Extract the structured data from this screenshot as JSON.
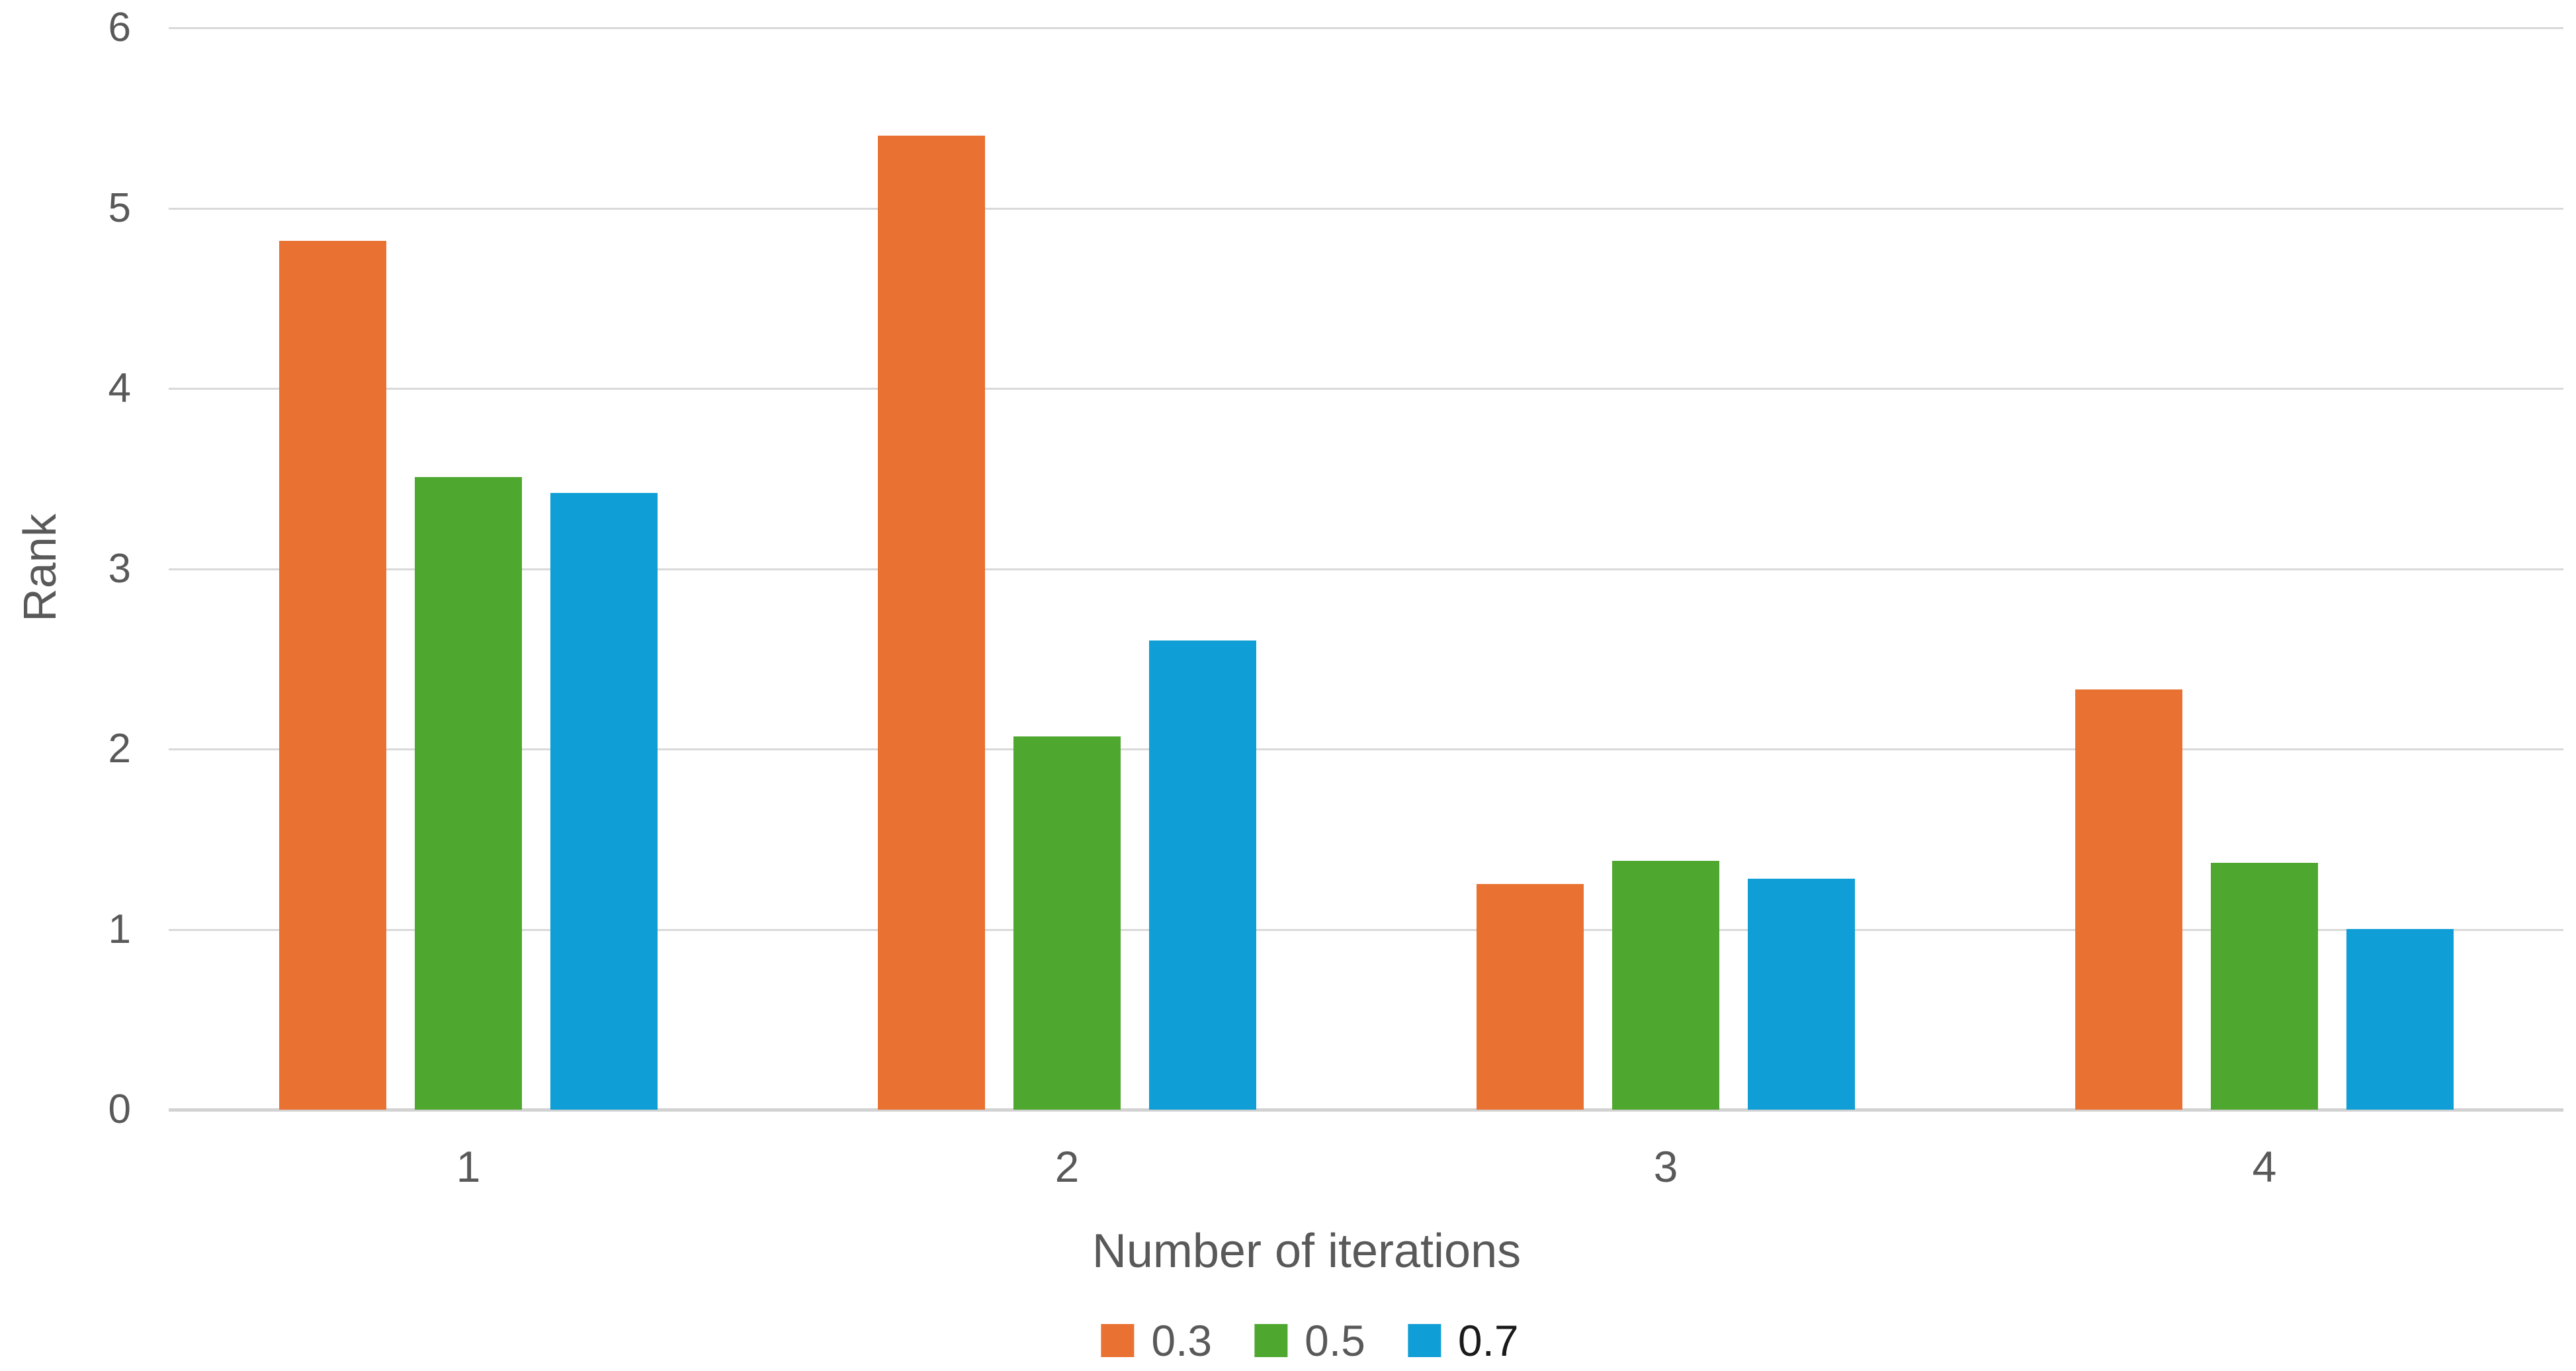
{
  "chart_data": {
    "type": "bar",
    "title": "",
    "xlabel": "Number of iterations",
    "ylabel": "Rank",
    "categories": [
      "1",
      "2",
      "3",
      "4"
    ],
    "series": [
      {
        "name": "0.3",
        "color": "#E97132",
        "label_color": "#595959",
        "values": [
          4.82,
          5.4,
          1.25,
          2.33
        ]
      },
      {
        "name": "0.5",
        "color": "#4EA72E",
        "label_color": "#595959",
        "values": [
          3.51,
          2.07,
          1.38,
          1.37
        ]
      },
      {
        "name": "0.7",
        "color": "#0F9ED5",
        "label_color": "#1A1A1A",
        "values": [
          3.42,
          2.6,
          1.28,
          1.0
        ]
      }
    ],
    "ylim": [
      0,
      6
    ],
    "yticks": [
      0,
      1,
      2,
      3,
      4,
      5,
      6
    ],
    "grid": true,
    "legend_position": "bottom",
    "axis_text_color": "#595959",
    "gridline_color": "#D9D9D9",
    "background": "#FFFFFF"
  }
}
